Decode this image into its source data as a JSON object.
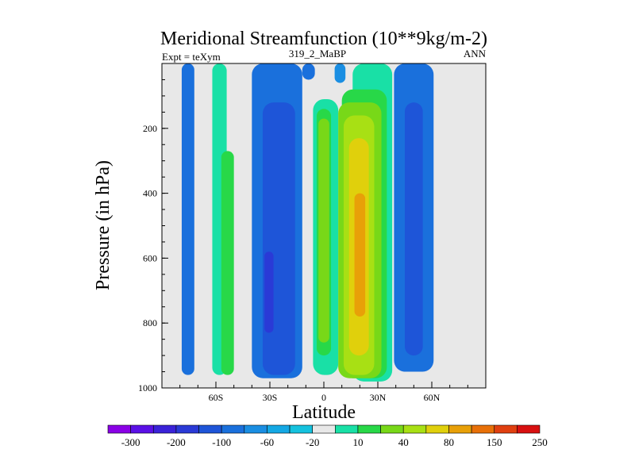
{
  "chart_data": {
    "type": "heatmap",
    "title": "Meridional Streamfunction (10**9kg/m-2)",
    "subtitle_left": "Expt = teXym",
    "subtitle_center": "319_2_MaBP",
    "subtitle_right": "ANN",
    "xlabel": "Latitude",
    "ylabel": "Pressure (in hPa)",
    "xlim": [
      -90,
      90
    ],
    "ylim": [
      1000,
      0
    ],
    "x_ticks": [
      {
        "value": -60,
        "label": "60S"
      },
      {
        "value": -30,
        "label": "30S"
      },
      {
        "value": 0,
        "label": "0"
      },
      {
        "value": 30,
        "label": "30N"
      },
      {
        "value": 60,
        "label": "60N"
      }
    ],
    "y_ticks": [
      {
        "value": 200,
        "label": "200"
      },
      {
        "value": 400,
        "label": "400"
      },
      {
        "value": 600,
        "label": "600"
      },
      {
        "value": 800,
        "label": "800"
      },
      {
        "value": 1000,
        "label": "1000"
      }
    ],
    "background_color": "#e8e8e8",
    "colorbar": {
      "colors": [
        "#8a00e6",
        "#5a10e6",
        "#3a22d8",
        "#2a3ad6",
        "#1e55d8",
        "#1a70dc",
        "#1a8ee2",
        "#14a8e4",
        "#15c2de",
        "#e8e8e8",
        "#19e0a6",
        "#28d848",
        "#78d818",
        "#a8e014",
        "#e0d00c",
        "#e8a008",
        "#e87008",
        "#e04010",
        "#d81010"
      ],
      "labels": [
        "-300",
        "-200",
        "-100",
        "-60",
        "-20",
        "10",
        "40",
        "80",
        "150",
        "250"
      ]
    },
    "cells": [
      {
        "lat": [
          -79,
          -72
        ],
        "p": [
          0,
          960
        ],
        "level": -4
      },
      {
        "lat": [
          -62,
          -54
        ],
        "p": [
          0,
          960
        ],
        "level": 1
      },
      {
        "lat": [
          -57,
          -50
        ],
        "p": [
          270,
          960
        ],
        "level": 2
      },
      {
        "lat": [
          -40,
          -12
        ],
        "p": [
          0,
          970
        ],
        "level": -4
      },
      {
        "lat": [
          -34,
          -16
        ],
        "p": [
          120,
          960
        ],
        "level": -5
      },
      {
        "lat": [
          -33,
          -28
        ],
        "p": [
          580,
          830
        ],
        "level": -6
      },
      {
        "lat": [
          -12,
          -5
        ],
        "p": [
          0,
          50
        ],
        "level": -4
      },
      {
        "lat": [
          -6,
          8
        ],
        "p": [
          110,
          960
        ],
        "level": 1
      },
      {
        "lat": [
          -4,
          4
        ],
        "p": [
          140,
          900
        ],
        "level": 2
      },
      {
        "lat": [
          -3,
          3
        ],
        "p": [
          170,
          860
        ],
        "level": 3
      },
      {
        "lat": [
          6,
          12
        ],
        "p": [
          0,
          60
        ],
        "level": -3
      },
      {
        "lat": [
          16,
          38
        ],
        "p": [
          0,
          980
        ],
        "level": 1
      },
      {
        "lat": [
          10,
          35
        ],
        "p": [
          80,
          970
        ],
        "level": 2
      },
      {
        "lat": [
          8,
          32
        ],
        "p": [
          120,
          970
        ],
        "level": 3
      },
      {
        "lat": [
          11,
          28
        ],
        "p": [
          160,
          960
        ],
        "level": 4
      },
      {
        "lat": [
          14,
          25
        ],
        "p": [
          230,
          900
        ],
        "level": 5
      },
      {
        "lat": [
          17,
          23
        ],
        "p": [
          400,
          780
        ],
        "level": 6
      },
      {
        "lat": [
          39,
          61
        ],
        "p": [
          0,
          950
        ],
        "level": -4
      },
      {
        "lat": [
          45,
          55
        ],
        "p": [
          120,
          900
        ],
        "level": -5
      }
    ]
  }
}
